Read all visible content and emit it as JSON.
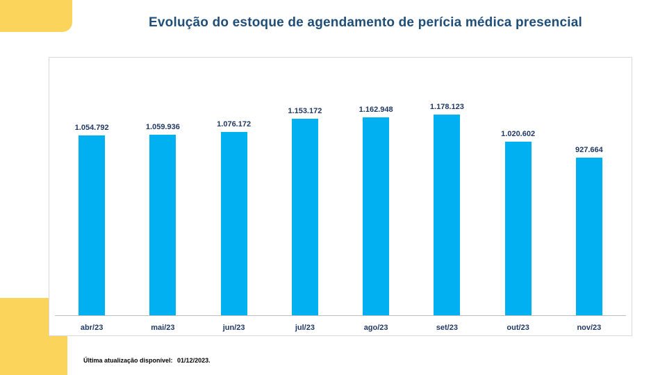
{
  "page": {
    "title": "Evolução do estoque de agendamento de perícia médica presencial",
    "footer_label": "Última atualização disponível:",
    "footer_date": "01/12/2023."
  },
  "colors": {
    "bar": "#00B0F0",
    "title_text": "#1F4E79",
    "data_label_text": "#203864",
    "accent_yellow": "#FBD45C",
    "card_border": "#D9D9D9",
    "axis_line": "#BFBFBF"
  },
  "chart_data": {
    "type": "bar",
    "title": "Evolução do estoque de agendamento de perícia médica presencial",
    "categories": [
      "abr/23",
      "mai/23",
      "jun/23",
      "jul/23",
      "ago/23",
      "set/23",
      "out/23",
      "nov/23"
    ],
    "values": [
      1054792,
      1059936,
      1076172,
      1153172,
      1162948,
      1178123,
      1020602,
      927664
    ],
    "value_labels": [
      "1.054.792",
      "1.059.936",
      "1.076.172",
      "1.153.172",
      "1.162.948",
      "1.178.123",
      "1.020.602",
      "927.664"
    ],
    "xlabel": "",
    "ylabel": "",
    "ylim": [
      0,
      1500000
    ],
    "grid": false,
    "legend": false,
    "bar_color": "#00B0F0"
  }
}
